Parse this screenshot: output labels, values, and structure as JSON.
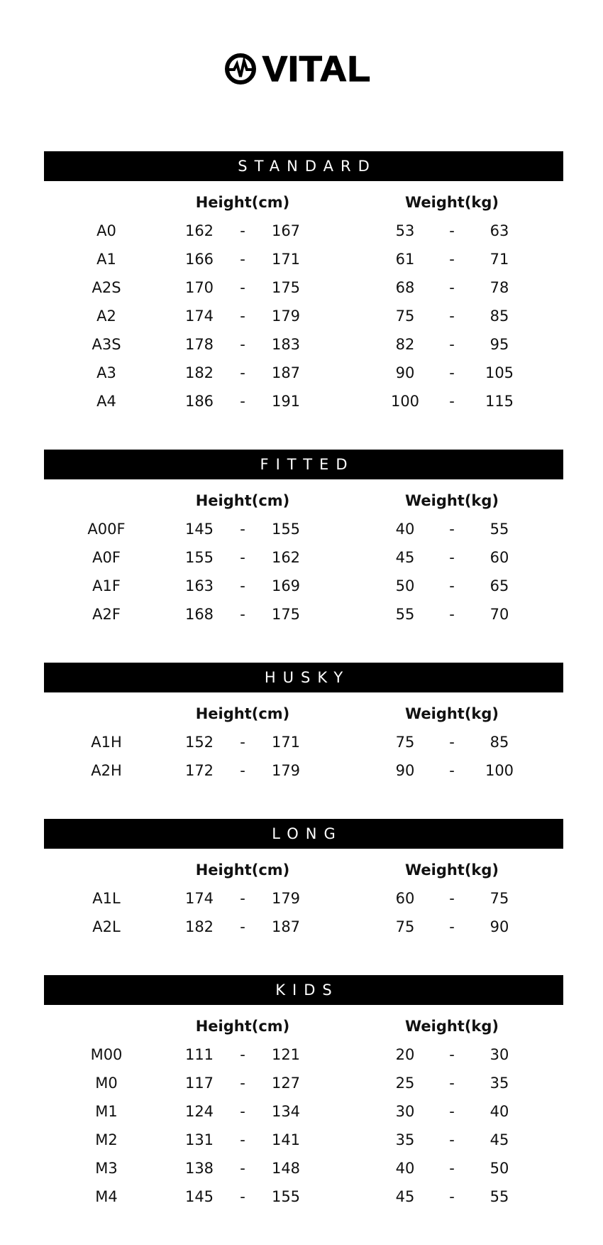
{
  "brand": {
    "name": "VITAL",
    "icon": "heartbeat-circle-icon"
  },
  "columns": {
    "height": "Height(cm)",
    "weight": "Weight(kg)",
    "separator": "-"
  },
  "sections": [
    {
      "title": "STANDARD",
      "rows": [
        {
          "size": "A0",
          "h_min": "162",
          "h_max": "167",
          "w_min": "53",
          "w_max": "63"
        },
        {
          "size": "A1",
          "h_min": "166",
          "h_max": "171",
          "w_min": "61",
          "w_max": "71"
        },
        {
          "size": "A2S",
          "h_min": "170",
          "h_max": "175",
          "w_min": "68",
          "w_max": "78"
        },
        {
          "size": "A2",
          "h_min": "174",
          "h_max": "179",
          "w_min": "75",
          "w_max": "85"
        },
        {
          "size": "A3S",
          "h_min": "178",
          "h_max": "183",
          "w_min": "82",
          "w_max": "95"
        },
        {
          "size": "A3",
          "h_min": "182",
          "h_max": "187",
          "w_min": "90",
          "w_max": "105"
        },
        {
          "size": "A4",
          "h_min": "186",
          "h_max": "191",
          "w_min": "100",
          "w_max": "115"
        }
      ]
    },
    {
      "title": "FITTED",
      "rows": [
        {
          "size": "A00F",
          "h_min": "145",
          "h_max": "155",
          "w_min": "40",
          "w_max": "55"
        },
        {
          "size": "A0F",
          "h_min": "155",
          "h_max": "162",
          "w_min": "45",
          "w_max": "60"
        },
        {
          "size": "A1F",
          "h_min": "163",
          "h_max": "169",
          "w_min": "50",
          "w_max": "65"
        },
        {
          "size": "A2F",
          "h_min": "168",
          "h_max": "175",
          "w_min": "55",
          "w_max": "70"
        }
      ]
    },
    {
      "title": "HUSKY",
      "rows": [
        {
          "size": "A1H",
          "h_min": "152",
          "h_max": "171",
          "w_min": "75",
          "w_max": "85"
        },
        {
          "size": "A2H",
          "h_min": "172",
          "h_max": "179",
          "w_min": "90",
          "w_max": "100"
        }
      ]
    },
    {
      "title": "LONG",
      "rows": [
        {
          "size": "A1L",
          "h_min": "174",
          "h_max": "179",
          "w_min": "60",
          "w_max": "75"
        },
        {
          "size": "A2L",
          "h_min": "182",
          "h_max": "187",
          "w_min": "75",
          "w_max": "90"
        }
      ]
    },
    {
      "title": "KIDS",
      "rows": [
        {
          "size": "M00",
          "h_min": "111",
          "h_max": "121",
          "w_min": "20",
          "w_max": "30"
        },
        {
          "size": "M0",
          "h_min": "117",
          "h_max": "127",
          "w_min": "25",
          "w_max": "35"
        },
        {
          "size": "M1",
          "h_min": "124",
          "h_max": "134",
          "w_min": "30",
          "w_max": "40"
        },
        {
          "size": "M2",
          "h_min": "131",
          "h_max": "141",
          "w_min": "35",
          "w_max": "45"
        },
        {
          "size": "M3",
          "h_min": "138",
          "h_max": "148",
          "w_min": "40",
          "w_max": "50"
        },
        {
          "size": "M4",
          "h_min": "145",
          "h_max": "155",
          "w_min": "45",
          "w_max": "55"
        }
      ]
    }
  ]
}
